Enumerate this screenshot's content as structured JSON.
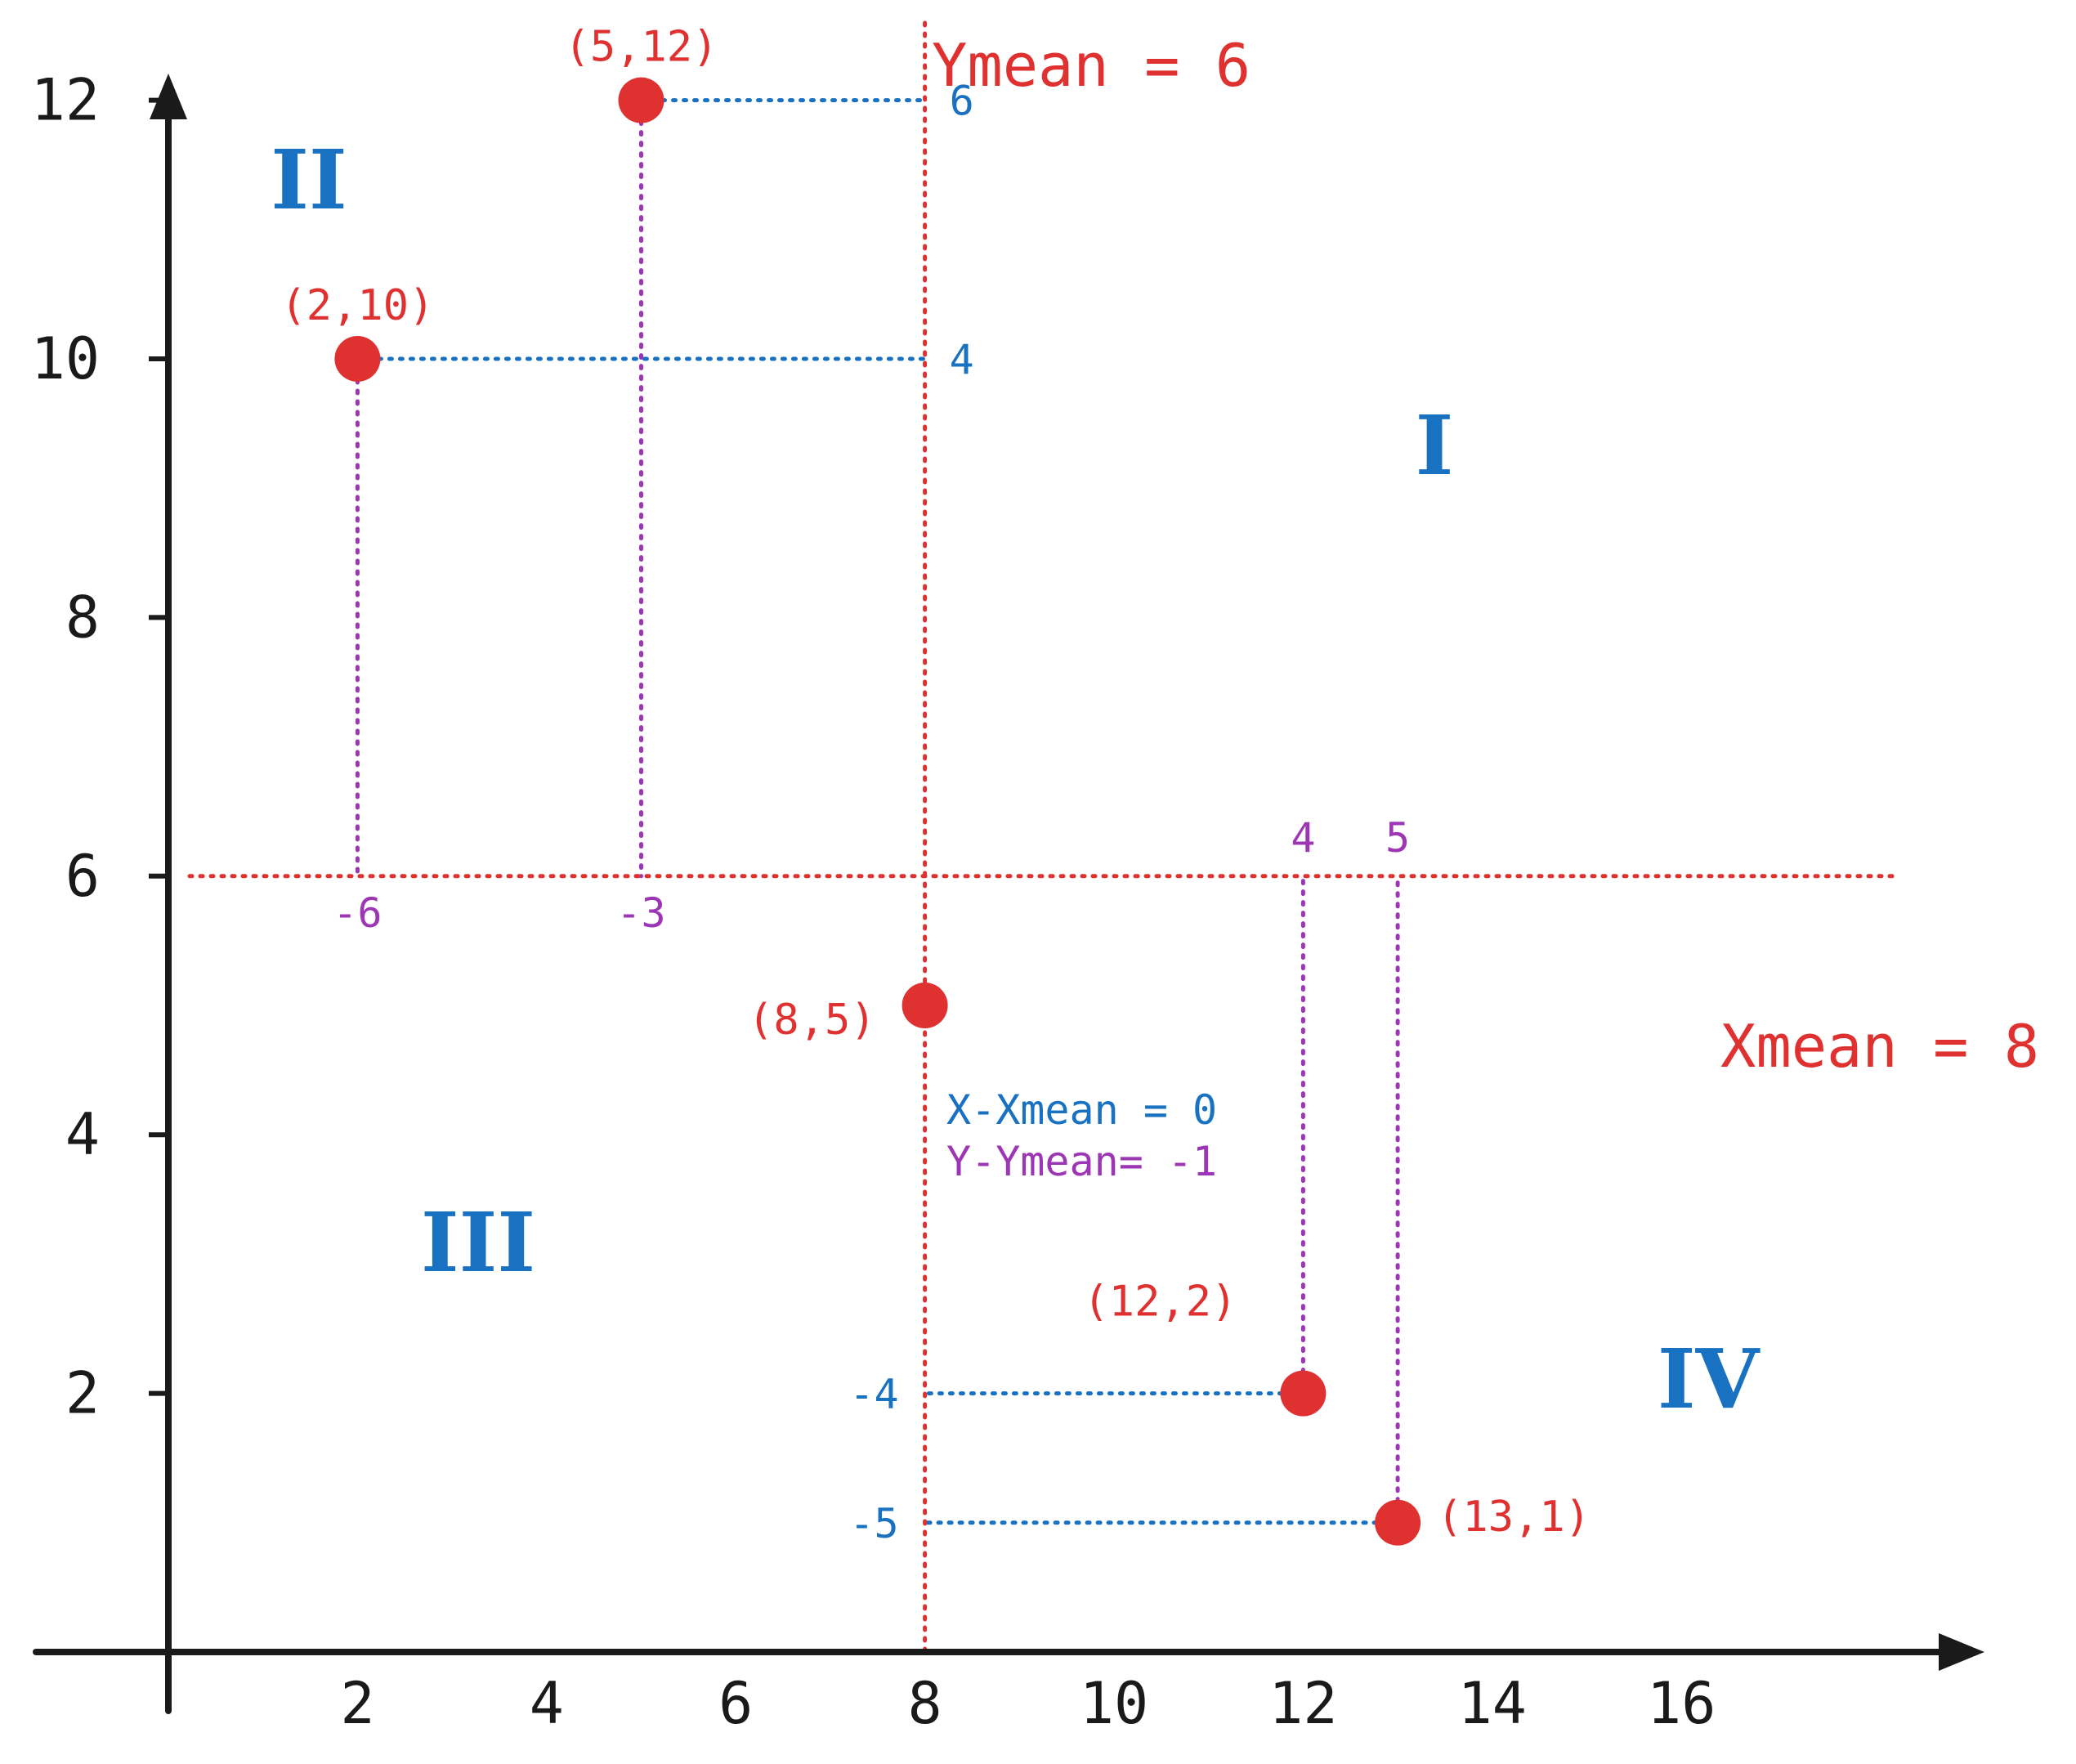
{
  "chart_data": {
    "type": "scatter",
    "xlim": [
      0,
      17
    ],
    "ylim": [
      0,
      13
    ],
    "x_ticks": [
      "2",
      "4",
      "6",
      "8",
      "10",
      "12",
      "14",
      "16"
    ],
    "y_ticks": [
      "2",
      "4",
      "6",
      "8",
      "10",
      "12"
    ],
    "grid": false,
    "points": [
      {
        "x": 2,
        "y": 10,
        "label": "(2,10)",
        "dx": "-6",
        "dy": "4"
      },
      {
        "x": 5,
        "y": 12,
        "label": "(5,12)",
        "dx": "-3",
        "dy": "6"
      },
      {
        "x": 8,
        "y": 5,
        "label": "(8,5)",
        "dx": "0",
        "dy": "-1"
      },
      {
        "x": 12,
        "y": 2,
        "label": "(12,2)",
        "dx": "4",
        "dy": "-4"
      },
      {
        "x": 13,
        "y": 1,
        "label": "(13,1)",
        "dx": "5",
        "dy": "-5"
      }
    ],
    "mean_lines": {
      "vertical_label": "Ymean = 6",
      "horizontal_label": "Xmean = 8"
    },
    "annotation": {
      "line1": "X-Xmean = 0",
      "line2": "Y-Ymean= -1"
    },
    "quadrants": [
      "I",
      "II",
      "III",
      "IV"
    ],
    "colors": {
      "axis": "#1a1a1a",
      "point": "#e03131",
      "mean_line": "#e03131",
      "x_deviation": "#1971c2",
      "y_deviation": "#9c36b5",
      "quadrant": "#1971c2"
    }
  }
}
